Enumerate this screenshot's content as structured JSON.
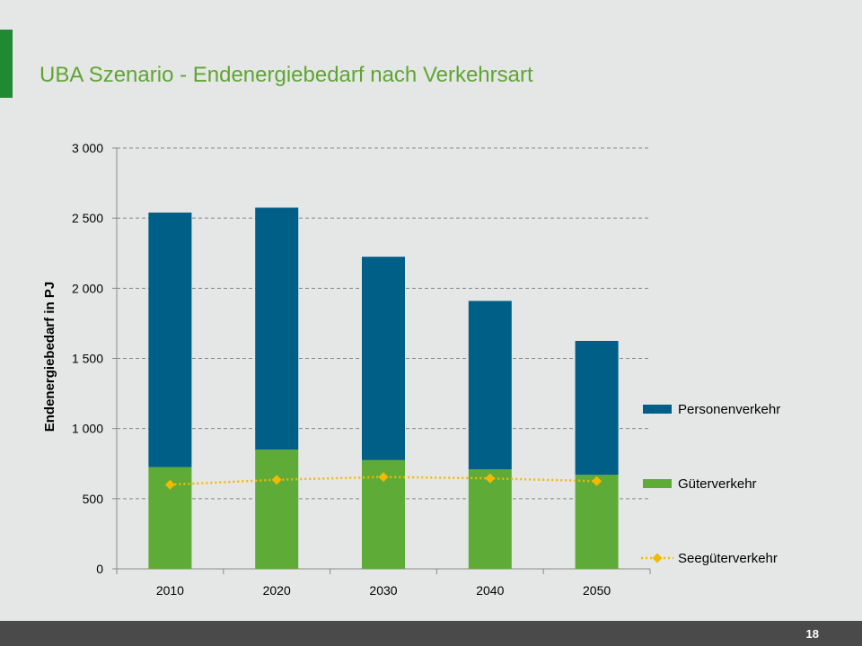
{
  "slide": {
    "title": "UBA Szenario - Endenergiebedarf nach Verkehrsart",
    "page_number": "18"
  },
  "colors": {
    "accent": "#1e8a33",
    "title": "#5ea630",
    "personenverkehr": "#005f86",
    "gueterverkehr": "#5eac37",
    "seegueterverkehr": "#f5b800"
  },
  "chart_data": {
    "type": "bar",
    "stacked": true,
    "categories": [
      "2010",
      "2020",
      "2030",
      "2040",
      "2050"
    ],
    "ylabel": "Endenergiebedarf in PJ",
    "ylim": [
      0,
      3000
    ],
    "yticks": [
      0,
      500,
      1000,
      1500,
      2000,
      2500,
      3000
    ],
    "ytick_labels": [
      "0",
      "500",
      "1 000",
      "1 500",
      "2 000",
      "2 500",
      "3 000"
    ],
    "grid": true,
    "legend_position": "right",
    "series": [
      {
        "name": "Güterverkehr",
        "type": "bar",
        "color": "#5eac37",
        "values": [
          725,
          850,
          775,
          710,
          670
        ]
      },
      {
        "name": "Personenverkehr",
        "type": "bar",
        "color": "#005f86",
        "values": [
          1815,
          1725,
          1450,
          1200,
          955
        ]
      },
      {
        "name": "Seegüterverkehr",
        "type": "line",
        "color": "#f5b800",
        "values": [
          600,
          635,
          655,
          645,
          625
        ]
      }
    ],
    "legend": [
      "Personenverkehr",
      "Güterverkehr",
      "Seegüterverkehr"
    ]
  }
}
